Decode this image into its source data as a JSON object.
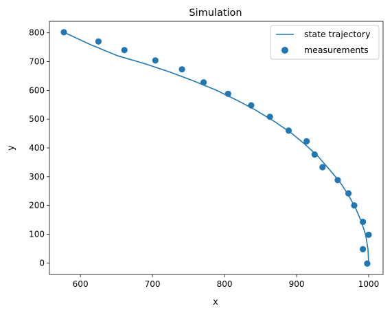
{
  "chart_data": {
    "type": "line",
    "title": "Simulation",
    "xlabel": "x",
    "ylabel": "y",
    "xlim": [
      557,
      1020
    ],
    "ylim": [
      -40,
      840
    ],
    "xticks": [
      600,
      700,
      800,
      900,
      1000
    ],
    "yticks": [
      0,
      100,
      200,
      300,
      400,
      500,
      600,
      700,
      800
    ],
    "grid": false,
    "legend_position": "upper right",
    "series": [
      {
        "name": "state trajectory",
        "kind": "line",
        "color": "#1f77b4",
        "x": [
          1000,
          999,
          996,
          990,
          982,
          972,
          960,
          945,
          930,
          912,
          892,
          869,
          844,
          817,
          788,
          757,
          724,
          689,
          652,
          614,
          577
        ],
        "y": [
          0,
          48,
          96,
          143,
          190,
          236,
          282,
          326,
          370,
          412,
          453,
          492,
          530,
          566,
          601,
          633,
          664,
          693,
          720,
          759,
          802
        ]
      },
      {
        "name": "measurements",
        "kind": "scatter",
        "color": "#1f77b4",
        "x": [
          998,
          992,
          1000,
          992,
          980,
          972,
          957,
          936,
          925,
          914,
          889,
          863,
          837,
          805,
          771,
          741,
          704,
          661,
          625,
          577
        ],
        "y": [
          -2,
          48,
          98,
          143,
          200,
          242,
          288,
          333,
          377,
          423,
          460,
          508,
          548,
          588,
          628,
          673,
          704,
          740,
          770,
          802
        ]
      }
    ]
  }
}
